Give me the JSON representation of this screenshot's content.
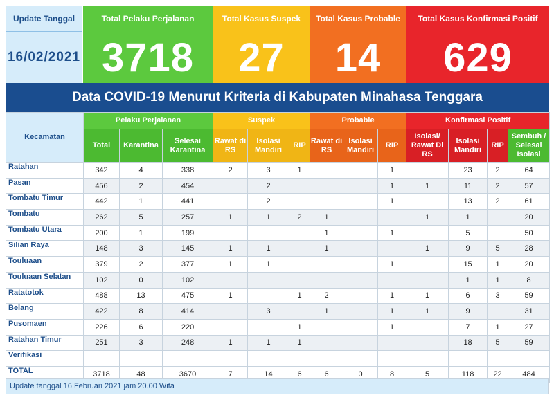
{
  "summary": {
    "date_label": "Update Tanggal",
    "date_value": "16/02/2021",
    "cards": [
      {
        "label": "Total Pelaku Perjalanan",
        "value": "3718",
        "color": "#5cc93e"
      },
      {
        "label": "Total Kasus Suspek",
        "value": "27",
        "color": "#f9c21a"
      },
      {
        "label": "Total Kasus Probable",
        "value": "14",
        "color": "#f26f21"
      },
      {
        "label": "Total Kasus Konfirmasi Positif",
        "value": "629",
        "color": "#e8252b"
      }
    ]
  },
  "title": "Data COVID-19 Menurut Kriteria di Kabupaten Minahasa Tenggara",
  "table": {
    "kecamatan_header": "Kecamatan",
    "groups": [
      "Pelaku Perjalanan",
      "Suspek",
      "Probable",
      "Konfirmasi Positif"
    ],
    "subheaders": [
      "Total",
      "Karantina",
      "Selesai Karantina",
      "Rawat di RS",
      "Isolasi Mandiri",
      "RIP",
      "Rawat di RS",
      "Isolasi Mandiri",
      "RIP",
      "Isolasi/ Rawat Di RS",
      "Isolasi Mandiri",
      "RIP",
      "Sembuh / Selesai Isolasi"
    ],
    "rows": [
      {
        "name": "Ratahan",
        "cells": [
          "342",
          "4",
          "338",
          "2",
          "3",
          "1",
          "",
          "",
          "1",
          "",
          "23",
          "2",
          "64"
        ]
      },
      {
        "name": "Pasan",
        "cells": [
          "456",
          "2",
          "454",
          "",
          "2",
          "",
          "",
          "",
          "1",
          "1",
          "11",
          "2",
          "57"
        ]
      },
      {
        "name": "Tombatu Timur",
        "cells": [
          "442",
          "1",
          "441",
          "",
          "2",
          "",
          "",
          "",
          "1",
          "",
          "13",
          "2",
          "61"
        ]
      },
      {
        "name": "Tombatu",
        "cells": [
          "262",
          "5",
          "257",
          "1",
          "1",
          "2",
          "1",
          "",
          "",
          "1",
          "1",
          "",
          "20"
        ]
      },
      {
        "name": "Tombatu Utara",
        "cells": [
          "200",
          "1",
          "199",
          "",
          "",
          "",
          "1",
          "",
          "1",
          "",
          "5",
          "",
          "50"
        ]
      },
      {
        "name": "Silian Raya",
        "cells": [
          "148",
          "3",
          "145",
          "1",
          "1",
          "",
          "1",
          "",
          "",
          "1",
          "9",
          "5",
          "28"
        ]
      },
      {
        "name": "Touluaan",
        "cells": [
          "379",
          "2",
          "377",
          "1",
          "1",
          "",
          "",
          "",
          "1",
          "",
          "15",
          "1",
          "20"
        ]
      },
      {
        "name": "Touluaan Selatan",
        "cells": [
          "102",
          "0",
          "102",
          "",
          "",
          "",
          "",
          "",
          "",
          "",
          "1",
          "1",
          "8"
        ]
      },
      {
        "name": "Ratatotok",
        "cells": [
          "488",
          "13",
          "475",
          "1",
          "",
          "1",
          "2",
          "",
          "1",
          "1",
          "6",
          "3",
          "59"
        ]
      },
      {
        "name": "Belang",
        "cells": [
          "422",
          "8",
          "414",
          "",
          "3",
          "",
          "1",
          "",
          "1",
          "1",
          "9",
          "",
          "31"
        ]
      },
      {
        "name": "Pusomaen",
        "cells": [
          "226",
          "6",
          "220",
          "",
          "",
          "1",
          "",
          "",
          "1",
          "",
          "7",
          "1",
          "27"
        ]
      },
      {
        "name": "Ratahan Timur",
        "cells": [
          "251",
          "3",
          "248",
          "1",
          "1",
          "1",
          "",
          "",
          "",
          "",
          "18",
          "5",
          "59"
        ]
      },
      {
        "name": "Verifikasi",
        "cells": [
          "",
          "",
          "",
          "",
          "",
          "",
          "",
          "",
          "",
          "",
          "",
          "",
          ""
        ]
      }
    ],
    "total": {
      "name": "TOTAL",
      "cells": [
        "3718",
        "48",
        "3670",
        "7",
        "14",
        "6",
        "6",
        "0",
        "8",
        "5",
        "118",
        "22",
        "484"
      ]
    }
  },
  "footer": "Update tanggal 16 Februari 2021 jam 20.00 Wita"
}
